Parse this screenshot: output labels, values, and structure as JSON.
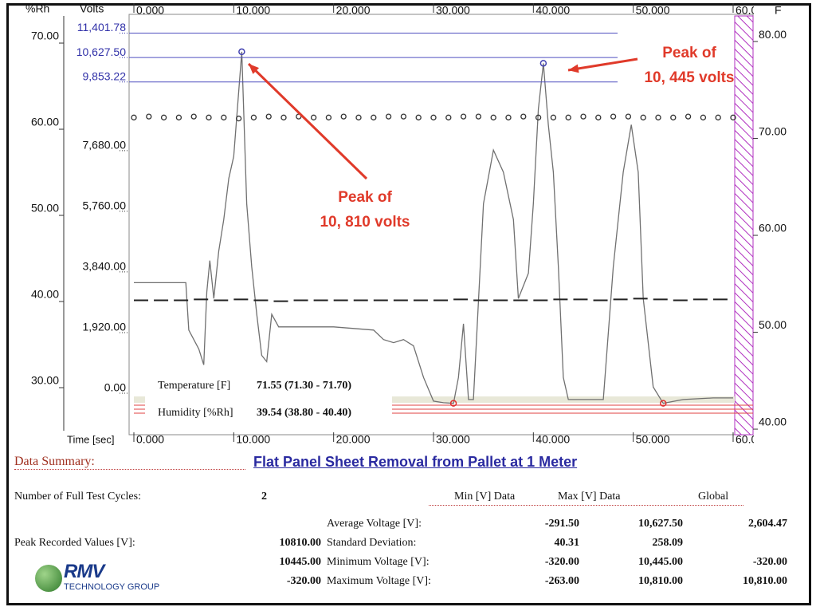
{
  "chart_data": {
    "type": "line",
    "x_label": "Time [sec]",
    "y_label": "Volts",
    "y2_label": "%Rh",
    "y3_label": "F",
    "xlim": [
      0,
      60
    ],
    "xticks": [
      {
        "value": 0,
        "label": "0.000"
      },
      {
        "value": 10,
        "label": "10.000"
      },
      {
        "value": 20,
        "label": "20.000"
      },
      {
        "value": 30,
        "label": "30.000"
      },
      {
        "value": 40,
        "label": "40.000"
      },
      {
        "value": 50,
        "label": "50.000"
      },
      {
        "value": 60,
        "label": "60.000"
      }
    ],
    "ylim": [
      -1187,
      11944
    ],
    "yticks": [
      {
        "value": 0,
        "label": "0.00"
      },
      {
        "value": 1920,
        "label": "1,920.00"
      },
      {
        "value": 3840,
        "label": "3,840.00"
      },
      {
        "value": 5760,
        "label": "5,760.00"
      },
      {
        "value": 7680,
        "label": "7,680.00"
      },
      {
        "value": 9853.22,
        "label": "9,853.22"
      },
      {
        "value": 10627.5,
        "label": "10,627.50"
      },
      {
        "value": 11401.78,
        "label": "11,401.78"
      }
    ],
    "y2lim": [
      24.26,
      72.41
    ],
    "y2ticks": [
      {
        "value": 30,
        "label": "30.00"
      },
      {
        "value": 40,
        "label": "40.00"
      },
      {
        "value": 50,
        "label": "50.00"
      },
      {
        "value": 60,
        "label": "60.00"
      },
      {
        "value": 70,
        "label": "70.00"
      }
    ],
    "y3lim": [
      39.18,
      81.98
    ],
    "y3ticks": [
      {
        "value": 40,
        "label": "40.00"
      },
      {
        "value": 50,
        "label": "50.00"
      },
      {
        "value": 60,
        "label": "60.00"
      },
      {
        "value": 70,
        "label": "70.00"
      },
      {
        "value": 80,
        "label": "80.00"
      }
    ],
    "series": [
      {
        "style": "line",
        "color": "#707070",
        "x": [
          0,
          5.2,
          5.5,
          6.5,
          7,
          7.3,
          7.6,
          8,
          8.5,
          9,
          9.5,
          10,
          10.8,
          11.3,
          11.8,
          12.3,
          12.8,
          13.3,
          13.8,
          14.5,
          16,
          20,
          24,
          25,
          26,
          27,
          28,
          29,
          30,
          31,
          32,
          32.5,
          33,
          33.5,
          34,
          35,
          36,
          37,
          38,
          38.5,
          39.5,
          40,
          40.5,
          41,
          41.5,
          42,
          42.5,
          43,
          43.5,
          47,
          48,
          49,
          49.8,
          50.5,
          51,
          52,
          53,
          55,
          58,
          60
        ],
        "values": [
          3500,
          3500,
          2000,
          1400,
          900,
          3200,
          4200,
          3000,
          4500,
          5500,
          6800,
          7500,
          10810,
          6000,
          4000,
          2500,
          1200,
          1000,
          2500,
          2100,
          2100,
          2100,
          2000,
          1700,
          1600,
          1700,
          1500,
          500,
          -250,
          -300,
          -320,
          500,
          2200,
          -200,
          -200,
          6000,
          7700,
          7000,
          5500,
          3000,
          3800,
          6000,
          9000,
          10445,
          8500,
          7000,
          4000,
          500,
          -200,
          -200,
          4000,
          7000,
          8500,
          7000,
          3000,
          200,
          -320,
          -200,
          -150,
          -150
        ]
      },
      {
        "name": "Temperature [F]",
        "summary": "71.55 (71.30 - 71.70)",
        "style": "circles",
        "axis": "y3",
        "color": "#333333",
        "x": [
          0,
          1.5,
          3,
          4.5,
          6,
          7.5,
          9,
          10.5,
          12,
          13.5,
          15,
          16.5,
          18,
          19.5,
          21,
          22.5,
          24,
          25.5,
          27,
          28.5,
          30,
          31.5,
          33,
          34.5,
          36,
          37.5,
          39,
          40.5,
          42,
          43.5,
          45,
          46.5,
          48,
          49.5,
          51,
          52.5,
          54,
          55.5,
          57,
          58.5,
          60
        ],
        "values": [
          71.5,
          71.6,
          71.5,
          71.5,
          71.6,
          71.5,
          71.5,
          71.4,
          71.5,
          71.6,
          71.5,
          71.6,
          71.5,
          71.5,
          71.6,
          71.5,
          71.5,
          71.6,
          71.6,
          71.5,
          71.5,
          71.5,
          71.6,
          71.6,
          71.5,
          71.5,
          71.6,
          71.5,
          71.5,
          71.5,
          71.6,
          71.5,
          71.6,
          71.6,
          71.5,
          71.5,
          71.5,
          71.6,
          71.5,
          71.5,
          71.5
        ]
      },
      {
        "name": "Humidity [%Rh]",
        "summary": "39.54 (38.80 - 40.40)",
        "style": "dashes",
        "axis": "y2",
        "color": "#222222",
        "x": [
          0,
          2,
          4,
          6,
          8,
          10,
          12,
          14,
          16,
          18,
          20,
          22,
          24,
          26,
          28,
          30,
          32,
          34,
          36,
          38,
          40,
          42,
          44,
          46,
          48,
          50,
          52,
          54,
          56,
          58
        ],
        "values": [
          39.4,
          39.4,
          39.4,
          39.5,
          39.4,
          39.5,
          39.4,
          39.3,
          39.4,
          39.4,
          39.4,
          39.4,
          39.4,
          39.4,
          39.4,
          39.4,
          39.5,
          39.4,
          39.4,
          39.4,
          39.4,
          39.5,
          39.5,
          39.4,
          39.5,
          39.6,
          39.5,
          39.4,
          39.5,
          39.5
        ]
      }
    ],
    "peaks": {
      "color": "#4040b0",
      "x": [
        10.8,
        41
      ],
      "values": [
        10810,
        10445
      ]
    },
    "troughs": {
      "color": "#e03030",
      "x": [
        32,
        53
      ],
      "values": [
        -320,
        -320
      ]
    },
    "annotations": [
      {
        "lines": [
          "Peak of",
          "10, 810 volts"
        ]
      },
      {
        "lines": [
          "Peak of",
          "10, 445 volts"
        ]
      }
    ]
  },
  "summary": {
    "heading": "Data Summary:",
    "title": "Flat Panel Sheet Removal from Pallet at 1 Meter",
    "cycles_label": "Number of Full Test Cycles:",
    "cycles": "2",
    "columns": [
      "Min [V] Data",
      "Max [V] Data",
      "Global"
    ],
    "rows": [
      {
        "label": "Average Voltage [V]:",
        "values": [
          "-291.50",
          "10,627.50",
          "2,604.47"
        ]
      },
      {
        "label": "Standard Deviation:",
        "values": [
          "40.31",
          "258.09"
        ]
      },
      {
        "label": "Minimum Voltage [V]:",
        "values": [
          "-320.00",
          "10,445.00",
          "-320.00"
        ]
      },
      {
        "label": "Maximum Voltage [V]:",
        "values": [
          "-263.00",
          "10,810.00",
          "10,810.00"
        ]
      }
    ],
    "peak_label": "Peak Recorded Values [V]:",
    "peaks": [
      "10810.00",
      "10445.00",
      "-320.00"
    ]
  },
  "logo": {
    "mark": "RMV",
    "text": "TECHNOLOGY GROUP"
  }
}
